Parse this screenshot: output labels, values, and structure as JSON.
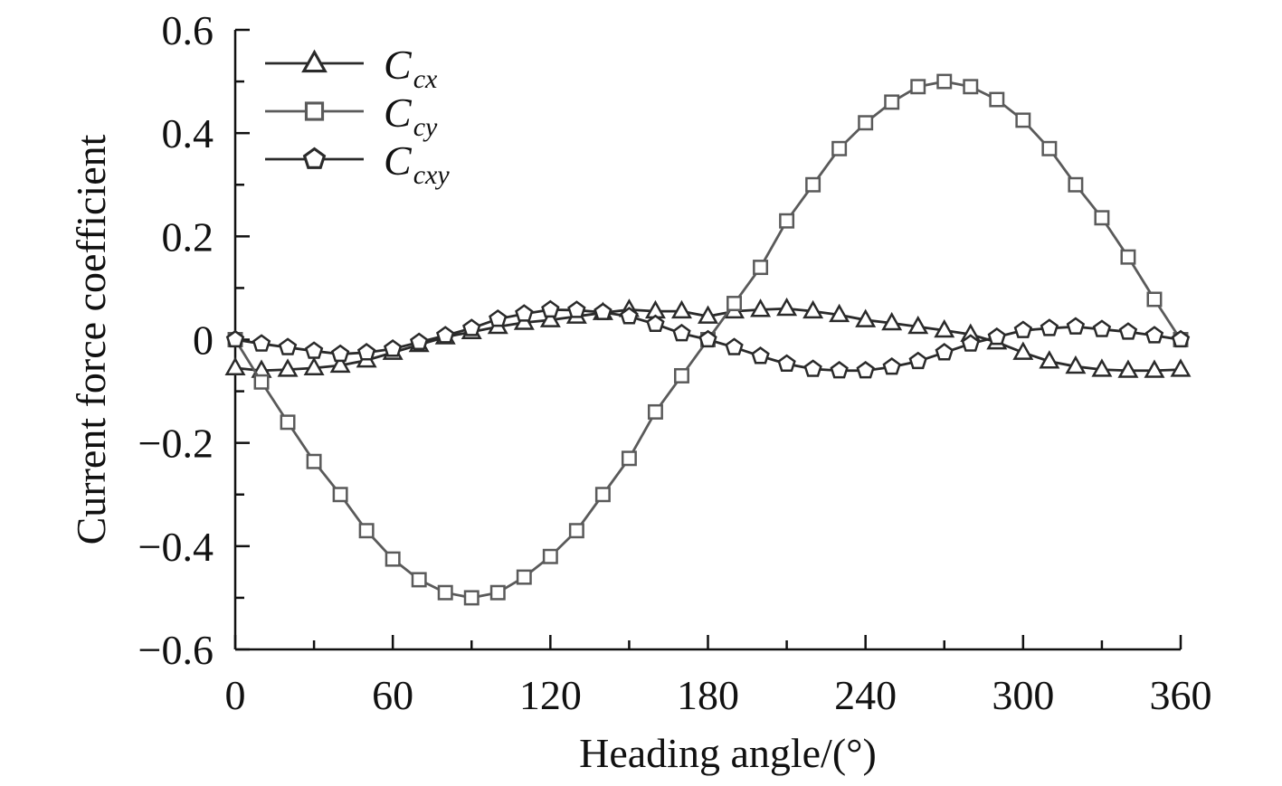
{
  "chart_data": {
    "type": "line",
    "xlabel": "Heading angle/(°)",
    "ylabel": "Current force coefficient",
    "xlim": [
      0,
      360
    ],
    "ylim": [
      -0.6,
      0.6
    ],
    "x_ticks": [
      0,
      60,
      120,
      180,
      240,
      300,
      360
    ],
    "x_tick_labels": [
      "0",
      "60",
      "120",
      "180",
      "240",
      "300",
      "360"
    ],
    "y_ticks": [
      -0.6,
      -0.4,
      -0.2,
      0,
      0.2,
      0.4,
      0.6
    ],
    "y_tick_labels": [
      "−0.6",
      "−0.4",
      "−0.2",
      "0",
      "0.2",
      "0.4",
      "0.6"
    ],
    "grid": false,
    "legend_position": "top-left",
    "x": [
      0,
      10,
      20,
      30,
      40,
      50,
      60,
      70,
      80,
      90,
      100,
      110,
      120,
      130,
      140,
      150,
      160,
      170,
      180,
      190,
      200,
      210,
      220,
      230,
      240,
      250,
      260,
      270,
      280,
      290,
      300,
      310,
      320,
      330,
      340,
      350,
      360
    ],
    "series": [
      {
        "name": "C",
        "name_sub": "cx",
        "marker": "triangle",
        "color": "#2a2a2a",
        "values": [
          -0.055,
          -0.06,
          -0.058,
          -0.055,
          -0.05,
          -0.04,
          -0.025,
          -0.01,
          0.005,
          0.015,
          0.025,
          0.033,
          0.038,
          0.045,
          0.052,
          0.058,
          0.055,
          0.055,
          0.045,
          0.055,
          0.058,
          0.06,
          0.055,
          0.048,
          0.038,
          0.032,
          0.025,
          0.018,
          0.01,
          -0.005,
          -0.025,
          -0.042,
          -0.052,
          -0.058,
          -0.06,
          -0.06,
          -0.058
        ]
      },
      {
        "name": "C",
        "name_sub": "cy",
        "marker": "square",
        "color": "#5a5a5a",
        "values": [
          0,
          -0.082,
          -0.16,
          -0.236,
          -0.3,
          -0.37,
          -0.425,
          -0.465,
          -0.49,
          -0.5,
          -0.49,
          -0.46,
          -0.42,
          -0.37,
          -0.3,
          -0.23,
          -0.14,
          -0.07,
          0,
          0.07,
          0.14,
          0.23,
          0.3,
          0.37,
          0.42,
          0.46,
          0.49,
          0.5,
          0.49,
          0.465,
          0.425,
          0.37,
          0.3,
          0.236,
          0.16,
          0.078,
          0
        ]
      },
      {
        "name": "C",
        "name_sub": "cxy",
        "marker": "pentagon",
        "color": "#2a2a2a",
        "values": [
          0,
          -0.008,
          -0.015,
          -0.022,
          -0.028,
          -0.025,
          -0.018,
          -0.005,
          0.008,
          0.022,
          0.04,
          0.05,
          0.058,
          0.057,
          0.053,
          0.045,
          0.03,
          0.012,
          0,
          -0.015,
          -0.032,
          -0.047,
          -0.057,
          -0.06,
          -0.06,
          -0.053,
          -0.042,
          -0.025,
          -0.008,
          0.005,
          0.018,
          0.022,
          0.025,
          0.02,
          0.015,
          0.008,
          0
        ]
      }
    ]
  }
}
